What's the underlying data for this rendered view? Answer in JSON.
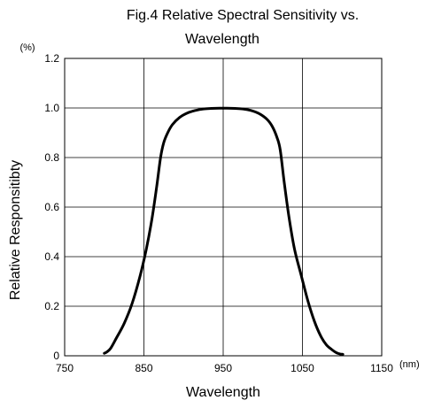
{
  "chart_data": {
    "type": "line",
    "title_line1": "Fig.4 Relative Spectral Sensitivity vs.",
    "title_line2": "Wavelength",
    "xlabel": "Wavelength",
    "ylabel": "Relative Responsitibty",
    "x_unit": "(nm)",
    "y_unit": "(%)",
    "xlim": [
      750,
      1150
    ],
    "ylim": [
      0,
      1.2
    ],
    "x_ticks": [
      750,
      850,
      950,
      1050,
      1150
    ],
    "y_ticks": [
      0,
      0.2,
      0.4,
      0.6,
      0.8,
      1.0,
      1.2
    ],
    "x_tick_labels": [
      "750",
      "850",
      "950",
      "1050",
      "1150"
    ],
    "y_tick_labels": [
      "0",
      "0.2",
      "0.4",
      "0.6",
      "0.8",
      "1.0",
      "1.2"
    ],
    "grid": true,
    "line_color": "#000000",
    "series": [
      {
        "x": [
          800,
          803,
          808,
          815,
          825,
          835,
          845,
          853,
          860,
          866,
          871,
          875,
          880,
          886,
          895,
          905,
          915,
          925,
          935,
          945,
          955,
          965,
          975,
          985,
          995,
          1005,
          1012,
          1018,
          1022,
          1027,
          1033,
          1040,
          1048,
          1057,
          1065,
          1073,
          1080,
          1087,
          1093,
          1098,
          1101
        ],
        "y": [
          0.01,
          0.015,
          0.03,
          0.07,
          0.13,
          0.21,
          0.32,
          0.43,
          0.55,
          0.68,
          0.8,
          0.86,
          0.9,
          0.933,
          0.962,
          0.98,
          0.99,
          0.996,
          0.998,
          0.999,
          0.999,
          0.998,
          0.996,
          0.99,
          0.978,
          0.955,
          0.925,
          0.88,
          0.83,
          0.7,
          0.56,
          0.43,
          0.33,
          0.22,
          0.14,
          0.08,
          0.045,
          0.025,
          0.012,
          0.007,
          0.006
        ]
      }
    ]
  }
}
